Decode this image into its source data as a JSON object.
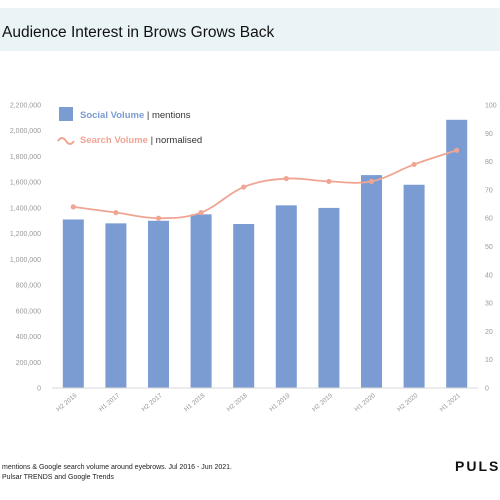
{
  "header": {
    "title": "Audience Interest in Brows Grows Back"
  },
  "footer": {
    "note_line1": "mentions & Google search volume around eyebrows. Jul 2016 - Jun 2021.",
    "note_line2": "Pulsar TRENDS and Google Trends",
    "logo": "PULSAR"
  },
  "chart_data": {
    "type": "bar",
    "categories": [
      "H2 2016",
      "H1 2017",
      "H2 2017",
      "H1 2018",
      "H2 2018",
      "H1 2019",
      "H2 2019",
      "H1 2020",
      "H2 2020",
      "H1 2021"
    ],
    "series": [
      {
        "name": "Social Volume",
        "type": "bar",
        "axis": "left",
        "color": "#7b9bd3",
        "values": [
          1310000,
          1280000,
          1300000,
          1350000,
          1275000,
          1420000,
          1400000,
          1655000,
          1580000,
          2085000
        ]
      },
      {
        "name": "Search Volume",
        "type": "line",
        "axis": "right",
        "color": "#f0a593",
        "values": [
          64,
          62,
          60,
          62,
          71,
          74,
          73,
          73,
          79,
          84
        ]
      }
    ],
    "y_left": {
      "range": [
        0,
        2200000
      ],
      "ticks": [
        "0",
        "200,000",
        "400,000",
        "600,000",
        "800,000",
        "1,000,000",
        "1,200,000",
        "1,400,000",
        "1,600,000",
        "1,800,000",
        "2,000,000",
        "2,200,000"
      ]
    },
    "y_right": {
      "range": [
        0,
        100
      ],
      "ticks": [
        "0",
        "10",
        "20",
        "30",
        "40",
        "50",
        "60",
        "70",
        "80",
        "90",
        "100"
      ]
    },
    "legend": [
      {
        "label": "Social Volume",
        "suffix": " | mentions",
        "color": "#7b9bd3"
      },
      {
        "label": "Search Volume",
        "suffix": " | normalised",
        "color": "#f0a593"
      }
    ],
    "legend_position": "top-left",
    "grid": false
  }
}
